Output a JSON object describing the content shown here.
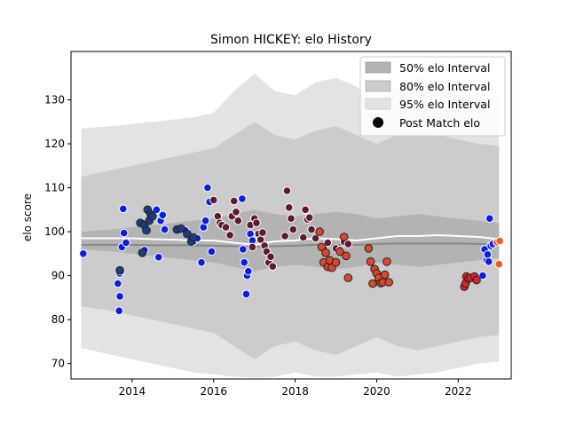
{
  "chart_data": {
    "type": "scatter",
    "title": "Simon HICKEY: elo History",
    "xlabel": "",
    "ylabel": "elo score",
    "xlim": [
      2012.5,
      2023.3
    ],
    "ylim": [
      66.5,
      141
    ],
    "x_ticks": [
      2014,
      2016,
      2018,
      2020,
      2022
    ],
    "y_ticks": [
      70,
      80,
      90,
      100,
      110,
      120,
      130
    ],
    "legend_position": "top-right",
    "grid": false,
    "legend": [
      "50% elo Interval",
      "80% elo Interval",
      "95% elo Interval",
      "Post Match elo"
    ],
    "colors": {
      "band50": "#b3b3b3",
      "band80": "#cccccc",
      "band95": "#e3e3e3",
      "median_line": "#ffffff",
      "mean_line": "#888888",
      "point_edge_white": "#ffffff",
      "point_edge_dark": "#222222",
      "blue": "#0a1ee0",
      "navy": "#1e3c80",
      "maroon": "#5e1a30",
      "orange_red": "#d9482c",
      "red": "#e0202c",
      "orange": "#f05a1e"
    },
    "bands": {
      "x": [
        2012.75,
        2013.5,
        2014.0,
        2014.5,
        2015.0,
        2015.5,
        2016.0,
        2016.5,
        2017.0,
        2017.5,
        2018.0,
        2018.5,
        2019.0,
        2019.5,
        2020.0,
        2020.5,
        2021.0,
        2021.5,
        2022.0,
        2022.5,
        2023.0
      ],
      "p95_upper": [
        123.5,
        124,
        124.5,
        125,
        125.5,
        126,
        127,
        132,
        136,
        132,
        131,
        134,
        135,
        133,
        130,
        133,
        135,
        134,
        132,
        131,
        130.5
      ],
      "p80_upper": [
        112.5,
        114,
        115,
        116,
        117,
        118,
        119,
        122,
        125,
        122,
        121,
        123,
        124,
        122,
        120,
        122,
        123,
        122,
        121,
        120,
        119.5
      ],
      "p50_upper": [
        100,
        100.5,
        101,
        101.5,
        102,
        102.5,
        103,
        104,
        105,
        104,
        103.5,
        104,
        104.5,
        104,
        103,
        103.5,
        104,
        103.5,
        103,
        102.5,
        102
      ],
      "p50_lower": [
        96,
        95.5,
        95,
        94.5,
        94,
        93.5,
        93,
        92,
        91,
        92,
        92.5,
        92,
        91.5,
        92,
        93,
        92.5,
        92,
        92.5,
        93,
        93.5,
        94
      ],
      "p80_lower": [
        83,
        82,
        81,
        80,
        79,
        78,
        77,
        74,
        71,
        74,
        75,
        73,
        72,
        74,
        76,
        74,
        73,
        74,
        75,
        76,
        76.5
      ],
      "p95_lower": [
        73.5,
        72,
        71,
        70,
        69,
        68,
        67.5,
        67,
        66.8,
        67,
        68,
        67,
        67,
        67.5,
        68,
        67,
        67.5,
        68,
        69,
        70,
        70.5
      ],
      "median": [
        98.5,
        98.5,
        98.5,
        98.3,
        98.2,
        98.0,
        98.0,
        97.5,
        97.0,
        97.8,
        98.0,
        98.5,
        98.3,
        98.0,
        98.5,
        99.0,
        99.0,
        99.2,
        99.0,
        98.8,
        98.3
      ],
      "mean": [
        97.0,
        97.0,
        97.0,
        96.9,
        96.9,
        96.9,
        96.8,
        96.7,
        96.5,
        96.7,
        96.8,
        97.0,
        97.0,
        97.0,
        97.2,
        97.3,
        97.3,
        97.3,
        97.3,
        97.2,
        97.0
      ]
    },
    "series": [
      {
        "color": "#0a1ee0",
        "edge": "white",
        "points": [
          [
            2012.8,
            95
          ],
          [
            2013.65,
            88.2
          ],
          [
            2013.7,
            85.3
          ],
          [
            2013.68,
            82
          ],
          [
            2013.7,
            90.5
          ],
          [
            2013.72,
            91
          ],
          [
            2013.75,
            96.5
          ],
          [
            2013.78,
            105.2
          ],
          [
            2013.8,
            99.7
          ],
          [
            2013.85,
            97.5
          ],
          [
            2014.3,
            95.8
          ],
          [
            2014.4,
            104.5
          ],
          [
            2014.6,
            105
          ],
          [
            2014.65,
            94.2
          ],
          [
            2014.7,
            102.5
          ],
          [
            2014.75,
            103.8
          ],
          [
            2014.8,
            100.5
          ],
          [
            2015.3,
            100.3
          ],
          [
            2015.5,
            97.8
          ],
          [
            2015.6,
            98.5
          ],
          [
            2015.7,
            93
          ],
          [
            2015.75,
            101
          ],
          [
            2015.8,
            102.5
          ],
          [
            2015.85,
            110
          ],
          [
            2015.9,
            106.8
          ],
          [
            2015.95,
            95.5
          ],
          [
            2016.7,
            107.5
          ],
          [
            2016.72,
            96
          ],
          [
            2016.75,
            93
          ],
          [
            2016.8,
            85.8
          ],
          [
            2016.82,
            90
          ],
          [
            2016.85,
            91
          ],
          [
            2016.9,
            99.5
          ],
          [
            2016.95,
            98
          ],
          [
            2022.6,
            90
          ],
          [
            2022.65,
            96
          ],
          [
            2022.7,
            93.5
          ],
          [
            2022.72,
            94.8
          ],
          [
            2022.75,
            93.2
          ],
          [
            2022.8,
            96.8
          ],
          [
            2022.85,
            97.2
          ],
          [
            2022.77,
            103
          ]
        ]
      },
      {
        "color": "#1e3c80",
        "edge": "dark",
        "points": [
          [
            2013.7,
            91.2
          ],
          [
            2014.2,
            102
          ],
          [
            2014.25,
            95.2
          ],
          [
            2014.3,
            101.5
          ],
          [
            2014.35,
            100.3
          ],
          [
            2014.38,
            105
          ],
          [
            2014.42,
            102.5
          ],
          [
            2014.45,
            104
          ],
          [
            2014.5,
            103.5
          ],
          [
            2015.1,
            100.5
          ],
          [
            2015.2,
            100.7
          ],
          [
            2015.35,
            99.5
          ],
          [
            2015.45,
            97.8
          ],
          [
            2015.5,
            98.7
          ]
        ]
      },
      {
        "color": "#5e1a30",
        "edge": "white",
        "points": [
          [
            2016.0,
            107.2
          ],
          [
            2016.1,
            103.5
          ],
          [
            2016.15,
            102
          ],
          [
            2016.2,
            101.5
          ],
          [
            2016.3,
            101
          ],
          [
            2016.4,
            99.2
          ],
          [
            2016.45,
            103.5
          ],
          [
            2016.5,
            107
          ],
          [
            2016.55,
            104.5
          ],
          [
            2016.6,
            102.5
          ],
          [
            2016.9,
            101.5
          ],
          [
            2016.95,
            96.5
          ],
          [
            2017.0,
            103
          ],
          [
            2017.05,
            102
          ],
          [
            2017.1,
            99.5
          ],
          [
            2017.15,
            98.2
          ],
          [
            2017.2,
            99.8
          ],
          [
            2017.25,
            96.8
          ],
          [
            2017.3,
            95.5
          ],
          [
            2017.35,
            93
          ],
          [
            2017.4,
            94.3
          ],
          [
            2017.45,
            92.1
          ],
          [
            2017.75,
            99
          ],
          [
            2017.8,
            109.3
          ],
          [
            2017.85,
            105.5
          ],
          [
            2017.9,
            103
          ],
          [
            2017.95,
            100.5
          ],
          [
            2018.2,
            98.7
          ],
          [
            2018.25,
            105
          ],
          [
            2018.3,
            102.8
          ],
          [
            2018.35,
            103.2
          ],
          [
            2018.4,
            100.5
          ],
          [
            2018.5,
            98.5
          ],
          [
            2018.7,
            96.2
          ],
          [
            2018.8,
            97.5
          ],
          [
            2019.0,
            96.2
          ],
          [
            2019.1,
            95.8
          ],
          [
            2019.2,
            97.7
          ],
          [
            2019.3,
            97.2
          ]
        ]
      },
      {
        "color": "#d9482c",
        "edge": "dark",
        "points": [
          [
            2018.6,
            100
          ],
          [
            2018.65,
            96.5
          ],
          [
            2018.7,
            93
          ],
          [
            2018.75,
            95.2
          ],
          [
            2018.8,
            92
          ],
          [
            2018.85,
            93.5
          ],
          [
            2018.9,
            91.8
          ],
          [
            2019.0,
            93
          ],
          [
            2019.1,
            95.5
          ],
          [
            2019.2,
            98.8
          ],
          [
            2019.25,
            94.5
          ],
          [
            2019.3,
            89.5
          ],
          [
            2019.8,
            96.2
          ],
          [
            2019.85,
            93.2
          ],
          [
            2019.9,
            88.2
          ],
          [
            2019.95,
            91.5
          ],
          [
            2020.0,
            90.5
          ],
          [
            2020.05,
            89.5
          ],
          [
            2020.1,
            88.3
          ],
          [
            2020.15,
            88.5
          ],
          [
            2020.2,
            90.2
          ],
          [
            2020.25,
            93.2
          ],
          [
            2020.3,
            88.5
          ]
        ]
      },
      {
        "color": "#e0202c",
        "edge": "dark",
        "points": [
          [
            2022.15,
            87.5
          ],
          [
            2022.18,
            88.2
          ],
          [
            2022.2,
            89.8
          ],
          [
            2022.25,
            89.3
          ],
          [
            2022.3,
            89.5
          ],
          [
            2022.4,
            89.8
          ],
          [
            2022.45,
            89
          ]
        ]
      },
      {
        "color": "#f05a1e",
        "edge": "white",
        "points": [
          [
            2022.95,
            97.6
          ],
          [
            2023.0,
            92.6
          ],
          [
            2023.02,
            97.9
          ]
        ]
      }
    ]
  }
}
